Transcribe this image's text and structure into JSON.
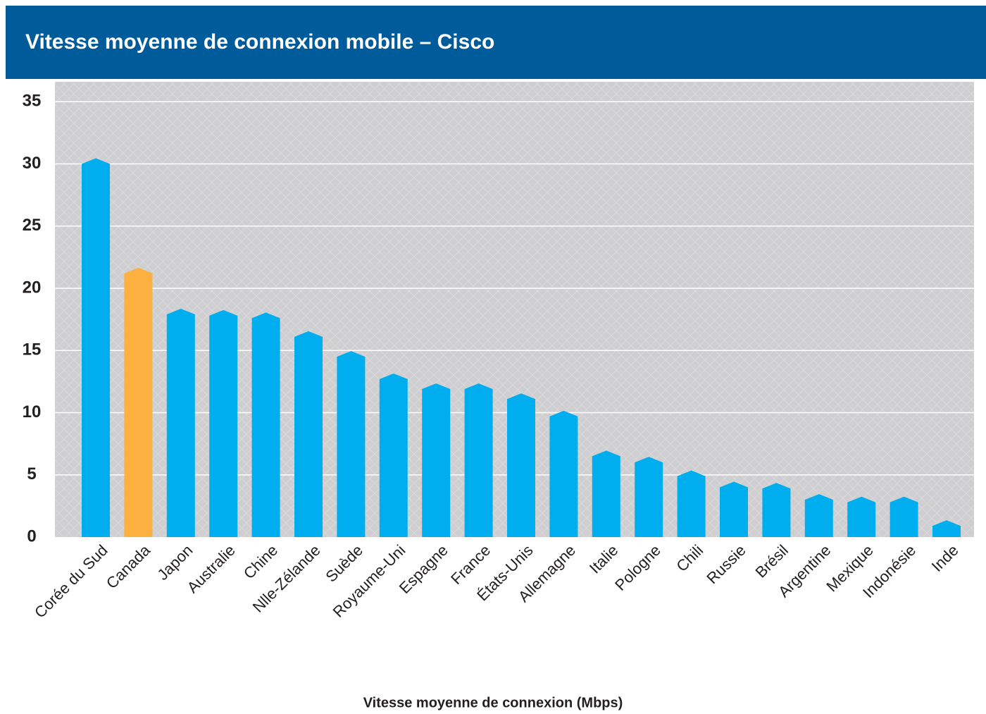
{
  "chart_data": {
    "type": "bar",
    "title": "Vitesse moyenne de connexion mobile – Cisco",
    "x_label": "Vitesse moyenne de connexion (Mbps)",
    "categories": [
      "Corée du Sud",
      "Canada",
      "Japon",
      "Australie",
      "Chine",
      "Nlle-Zélande",
      "Suède",
      "Royaume-Uni",
      "Espagne",
      "France",
      "États-Unis",
      "Allemagne",
      "Italie",
      "Pologne",
      "Chili",
      "Russie",
      "Brésil",
      "Argentine",
      "Mexique",
      "Indonésie",
      "Inde"
    ],
    "values": [
      30.0,
      21.2,
      17.9,
      17.8,
      17.6,
      16.1,
      14.5,
      12.7,
      11.9,
      11.9,
      11.1,
      9.7,
      6.5,
      6.0,
      4.9,
      4.0,
      3.9,
      3.0,
      2.8,
      2.8,
      0.9
    ],
    "colors": [
      "#00aeef",
      "#fbb040",
      "#00aeef",
      "#00aeef",
      "#00aeef",
      "#00aeef",
      "#00aeef",
      "#00aeef",
      "#00aeef",
      "#00aeef",
      "#00aeef",
      "#00aeef",
      "#00aeef",
      "#00aeef",
      "#00aeef",
      "#00aeef",
      "#00aeef",
      "#00aeef",
      "#00aeef",
      "#00aeef",
      "#00aeef"
    ],
    "ylim": [
      0,
      36.6
    ],
    "yticks": [
      0,
      5,
      10,
      15,
      20,
      25,
      30,
      35
    ],
    "grid": true
  }
}
